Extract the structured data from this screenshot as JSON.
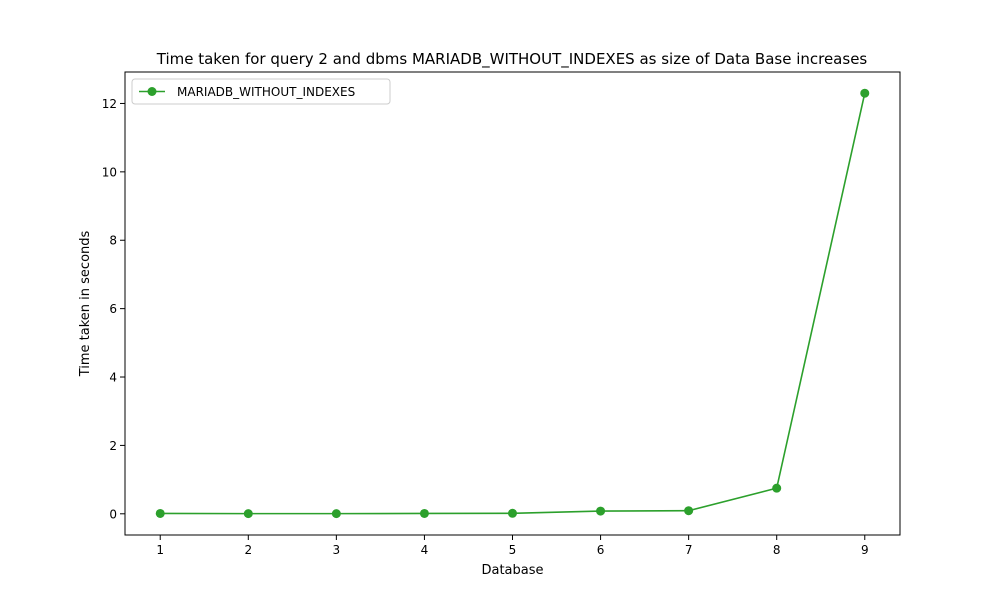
{
  "chart_data": {
    "type": "line",
    "title": "Time taken for query 2 and dbms MARIADB_WITHOUT_INDEXES as size of Data Base increases",
    "xlabel": "Database",
    "ylabel": "Time taken in seconds",
    "x": [
      1,
      2,
      3,
      4,
      5,
      6,
      7,
      8,
      9
    ],
    "series": [
      {
        "name": "MARIADB_WITHOUT_INDEXES",
        "color": "#2ca02c",
        "marker": "circle",
        "values": [
          0.01,
          0.005,
          0.005,
          0.01,
          0.015,
          0.08,
          0.09,
          0.75,
          12.3
        ]
      }
    ],
    "xlim": [
      0.6,
      9.4
    ],
    "ylim": [
      -0.62,
      12.92
    ],
    "xticks": [
      1,
      2,
      3,
      4,
      5,
      6,
      7,
      8,
      9
    ],
    "yticks": [
      0,
      2,
      4,
      6,
      8,
      10,
      12
    ],
    "grid": false,
    "legend_position": "top-left"
  }
}
